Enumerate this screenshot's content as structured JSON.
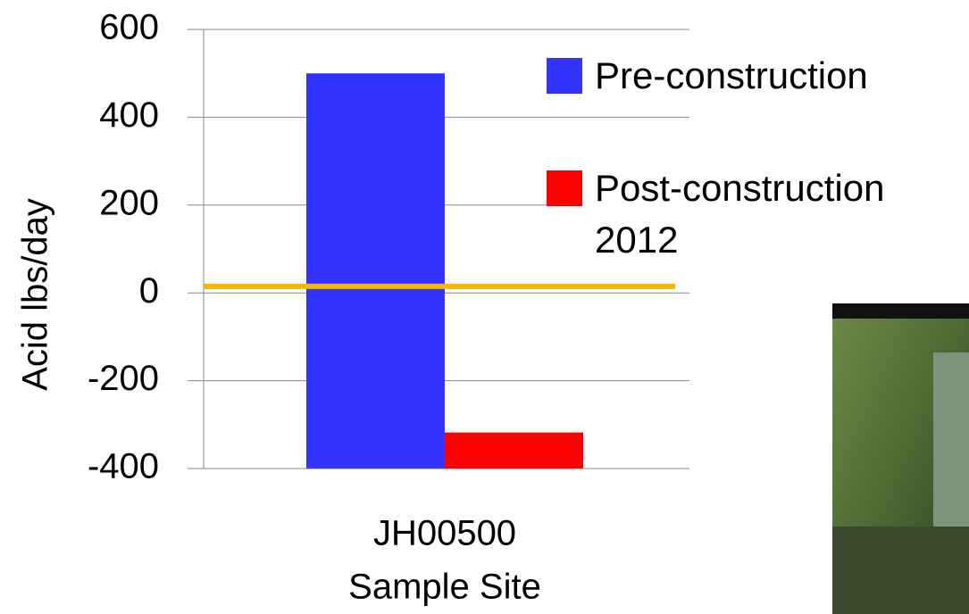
{
  "chart_data": {
    "type": "bar",
    "x_label": "Sample Site",
    "y_label": "Acid lbs/day",
    "categories": [
      "JH00500"
    ],
    "series": [
      {
        "name": "Pre-construction",
        "color": "#3333ff",
        "values": [
          500
        ]
      },
      {
        "name": "Post-construction 2012",
        "color": "#ff0000",
        "values": [
          -318
        ]
      }
    ],
    "reference_line": {
      "value": 15,
      "color": "#f5b800"
    },
    "ylim": [
      -400,
      600
    ],
    "yticks": [
      -400,
      -200,
      0,
      200,
      400,
      600
    ],
    "grid": true,
    "legend": "right"
  }
}
